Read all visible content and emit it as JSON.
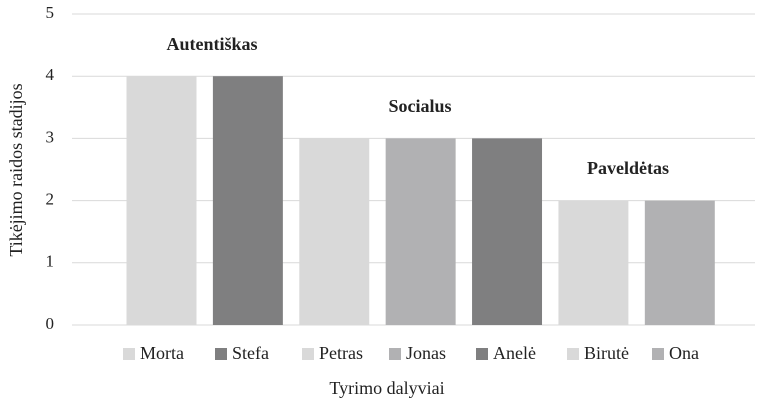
{
  "chart_data": {
    "type": "bar",
    "categories": [
      "Morta",
      "Stefa",
      "Petras",
      "Jonas",
      "Anelė",
      "Birutė",
      "Ona"
    ],
    "values": [
      4,
      4,
      3,
      3,
      3,
      2,
      2
    ],
    "colors": [
      "#d9d9d9",
      "#7f7f80",
      "#d9d9d9",
      "#b1b1b3",
      "#7f7f80",
      "#d9d9d9",
      "#b1b1b3"
    ],
    "ylabel": "Tikėjimo raidos stadijos",
    "xlabel": "Tyrimo dalyviai",
    "annotations": [
      "Autentiškas",
      "Socialus",
      "Paveldėtas"
    ],
    "ylim": [
      0,
      5
    ],
    "yticks": [
      0,
      1,
      2,
      3,
      4,
      5
    ],
    "grid": true,
    "legend": "bottom"
  }
}
